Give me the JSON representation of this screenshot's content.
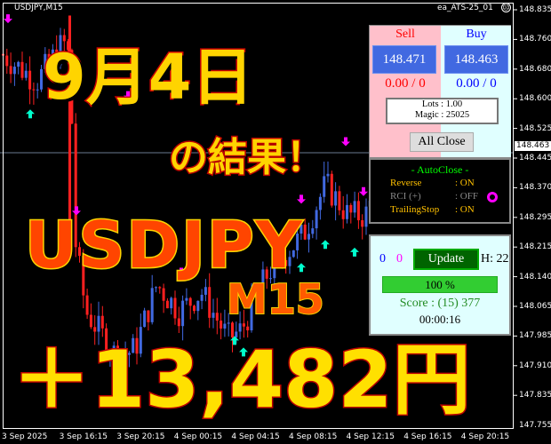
{
  "chart": {
    "symbol": "USDJPY,M15",
    "ea_name": "ea_ATS-25_01",
    "ea_status_icon": "sad-face-icon",
    "current_price": "148.463",
    "y_labels": [
      "148.835",
      "148.760",
      "148.680",
      "148.600",
      "148.525",
      "148.445",
      "148.370",
      "148.295",
      "148.215",
      "148.140",
      "148.065",
      "147.985",
      "147.910",
      "147.835",
      "147.755"
    ],
    "x_labels": [
      "3 Sep 2025",
      "3 Sep 16:15",
      "3 Sep 20:15",
      "4 Sep 00:15",
      "4 Sep 04:15",
      "4 Sep 08:15",
      "4 Sep 12:15",
      "4 Sep 16:15",
      "4 Sep 20:15"
    ],
    "colors": {
      "bull": "#4169e1",
      "bear": "#ff2020",
      "buy_arrow": "#00ffcc",
      "sell_arrow": "#ff00ff"
    }
  },
  "overlay": {
    "date": "9月4日",
    "result": "の結果！",
    "pair": "USDJPY",
    "timeframe": "M15",
    "profit": "＋13,482円"
  },
  "trade_panel": {
    "sell_label": "Sell",
    "buy_label": "Buy",
    "sell_price": "148.471",
    "buy_price": "148.463",
    "sell_pl": "0.00 / 0",
    "buy_pl": "0.00 / 0",
    "lots": "Lots   : 1.00",
    "magic": "Magic : 25025",
    "all_close": "All Close"
  },
  "autoclose": {
    "title": "- AutoClose -",
    "rows": [
      {
        "label": "Reverse",
        "value": ": ON"
      },
      {
        "label": "RCI (+)",
        "value": ": OFF"
      },
      {
        "label": "TrailingStop",
        "value": ": ON"
      }
    ]
  },
  "status_panel": {
    "count_blue": "0",
    "count_magenta": "0",
    "update": "Update",
    "h": "H: 22",
    "progress": "100 %",
    "progress_value": 100,
    "score": "Score : (15) 377",
    "timer": "00:00:16"
  }
}
